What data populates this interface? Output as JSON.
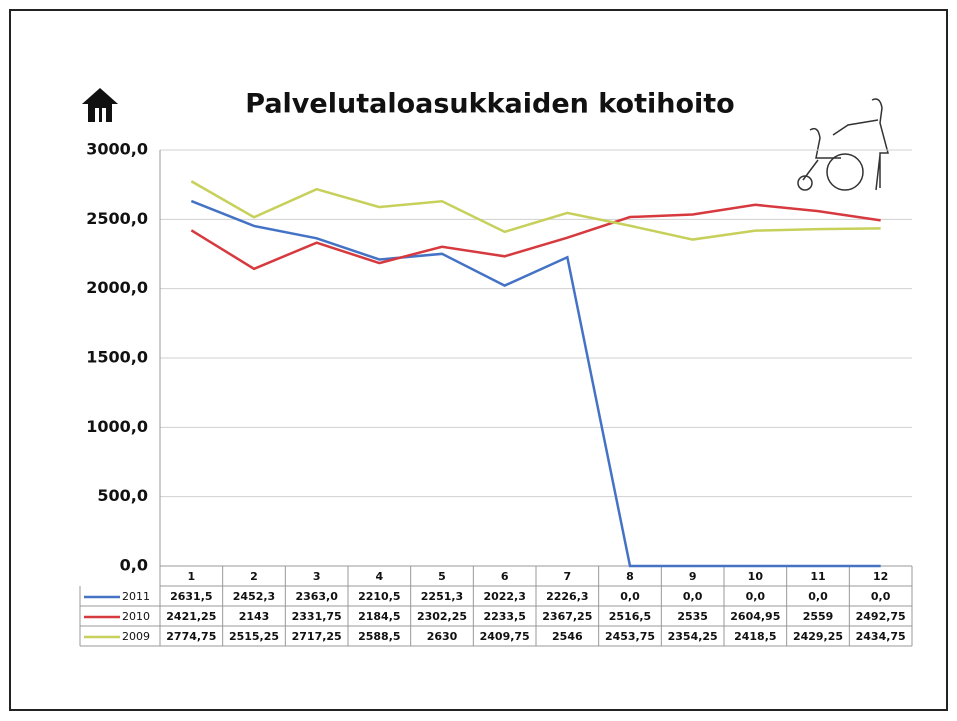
{
  "chart_data": {
    "type": "line",
    "title": "Palvelutaloasukkaiden kotihoito",
    "categories": [
      "1",
      "2",
      "3",
      "4",
      "5",
      "6",
      "7",
      "8",
      "9",
      "10",
      "11",
      "12"
    ],
    "series": [
      {
        "name": "2011",
        "color": "#4472c4",
        "values": [
          2631.5,
          2452.3,
          2363.0,
          2210.5,
          2251.3,
          2022.3,
          2226.3,
          0,
          0,
          0,
          0,
          0
        ],
        "value_labels": [
          "2631,5",
          "2452,3",
          "2363,0",
          "2210,5",
          "2251,3",
          "2022,3",
          "2226,3",
          "0,0",
          "0,0",
          "0,0",
          "0,0",
          "0,0"
        ]
      },
      {
        "name": "2010",
        "color": "#d63a3f",
        "values": [
          2421.25,
          2143,
          2331.75,
          2184.5,
          2302.25,
          2233.5,
          2367.25,
          2516.5,
          2535,
          2604.95,
          2559,
          2492.75
        ],
        "value_labels": [
          "2421,25",
          "2143",
          "2331,75",
          "2184,5",
          "2302,25",
          "2233,5",
          "2367,25",
          "2516,5",
          "2535",
          "2604,95",
          "2559",
          "2492,75"
        ]
      },
      {
        "name": "2009",
        "color": "#c6d05a",
        "values": [
          2774.75,
          2515.25,
          2717.25,
          2588.5,
          2630,
          2409.75,
          2546,
          2453.75,
          2354.25,
          2418.5,
          2429.25,
          2434.75
        ],
        "value_labels": [
          "2774,75",
          "2515,25",
          "2717,25",
          "2588,5",
          "2630",
          "2409,75",
          "2546",
          "2453,75",
          "2354,25",
          "2418,5",
          "2429,25",
          "2434,75"
        ]
      }
    ],
    "ylim": [
      0,
      3000
    ],
    "yticks": [
      {
        "value": 0,
        "label": "0,0"
      },
      {
        "value": 500,
        "label": "500,0"
      },
      {
        "value": 1000,
        "label": "1000,0"
      },
      {
        "value": 1500,
        "label": "1500,0"
      },
      {
        "value": 2000,
        "label": "2000,0"
      },
      {
        "value": 2500,
        "label": "2500,0"
      },
      {
        "value": 3000,
        "label": "3000,0"
      }
    ],
    "grid": true
  }
}
